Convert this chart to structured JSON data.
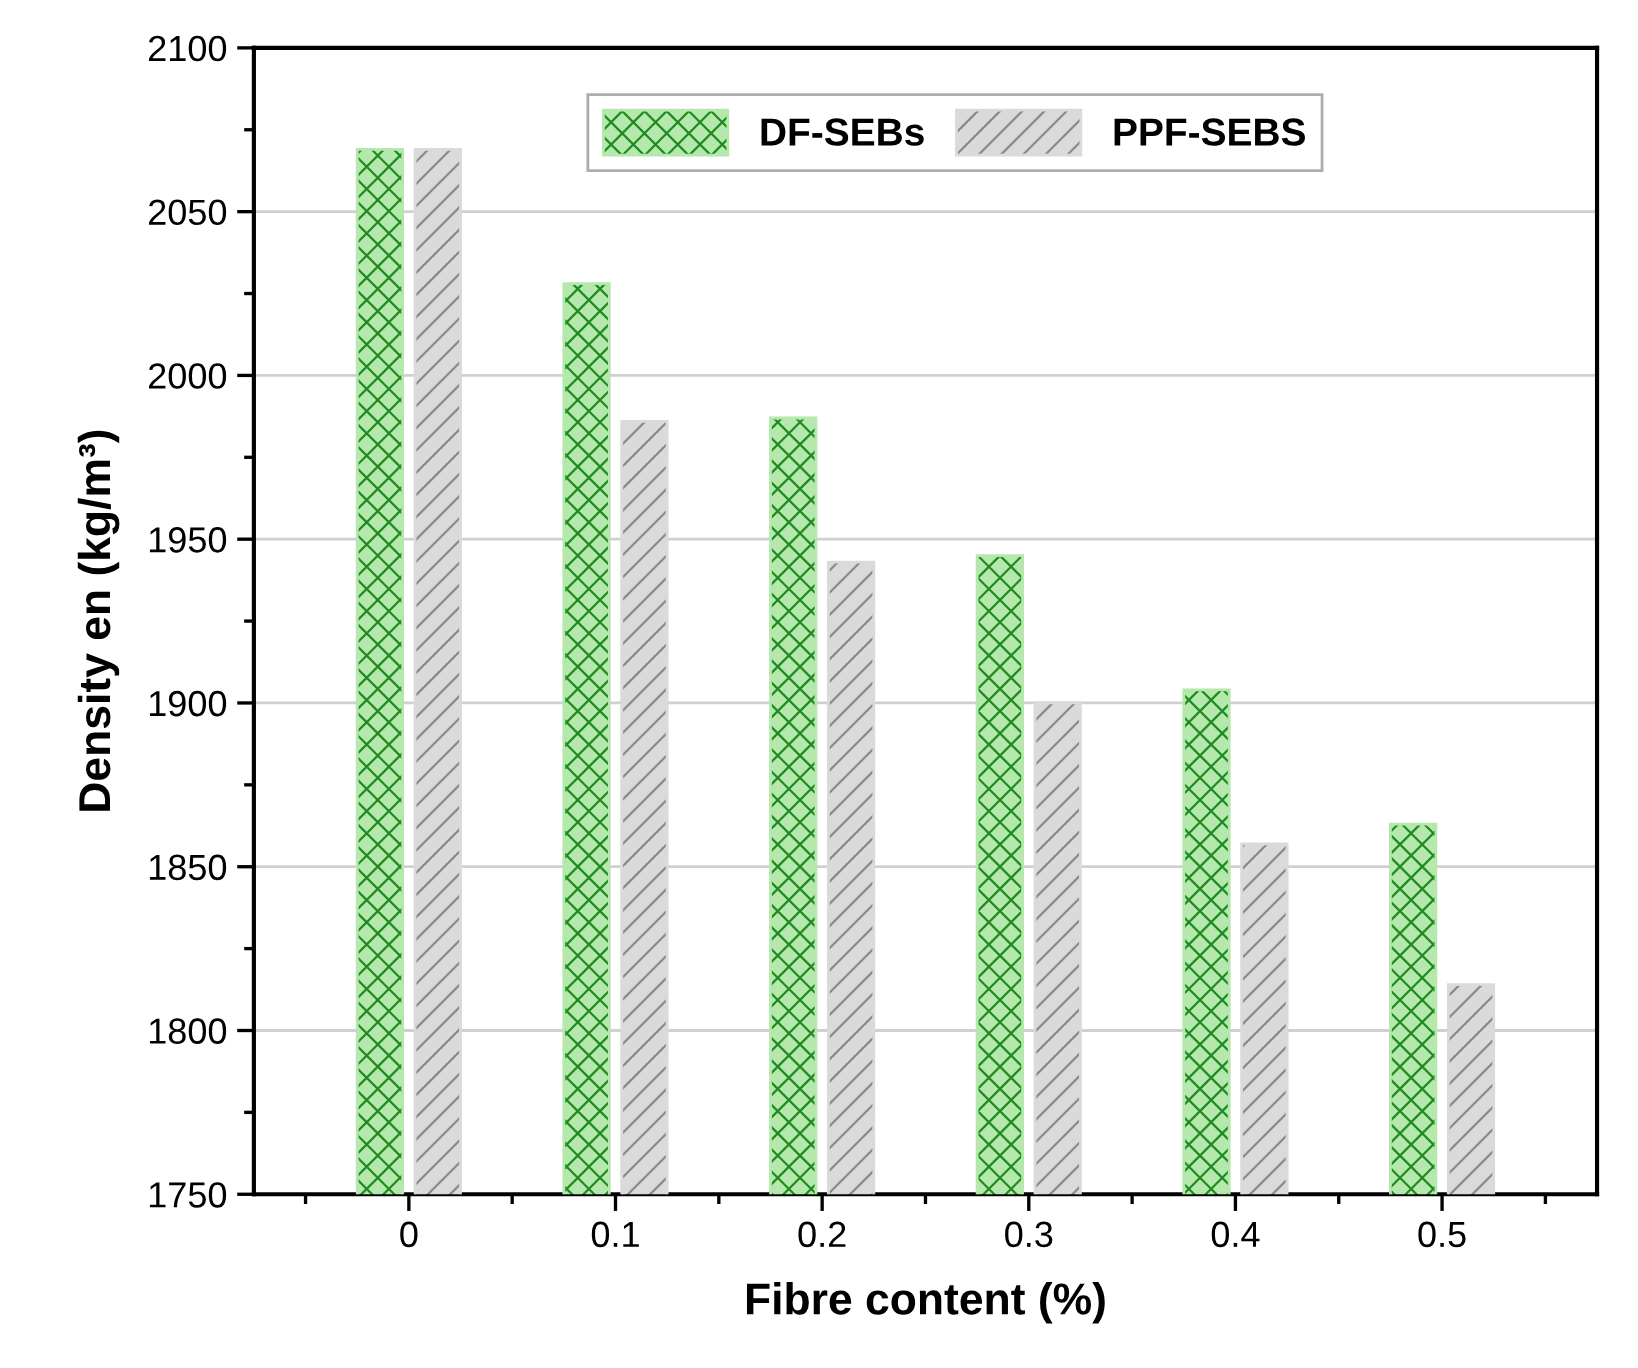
{
  "chart_data": {
    "type": "bar",
    "xlabel": "Fibre content (%)",
    "ylabel": "Density en (kg/m³)",
    "categories": [
      "0",
      "0.1",
      "0.2",
      "0.3",
      "0.4",
      "0.5"
    ],
    "series": [
      {
        "name": "DF-SEBs",
        "color": "#b5e8ad",
        "values": [
          2069,
          2028,
          1987,
          1945,
          1904,
          1863
        ]
      },
      {
        "name": "PPF-SEBS",
        "color": "#dadada",
        "values": [
          2069,
          1986,
          1943,
          1900,
          1857,
          1814
        ]
      }
    ],
    "ylim": [
      1750,
      2100
    ],
    "yticks": [
      1750,
      1800,
      1850,
      1900,
      1950,
      2000,
      2050,
      2100
    ],
    "grid": "y",
    "legend": "top right"
  }
}
